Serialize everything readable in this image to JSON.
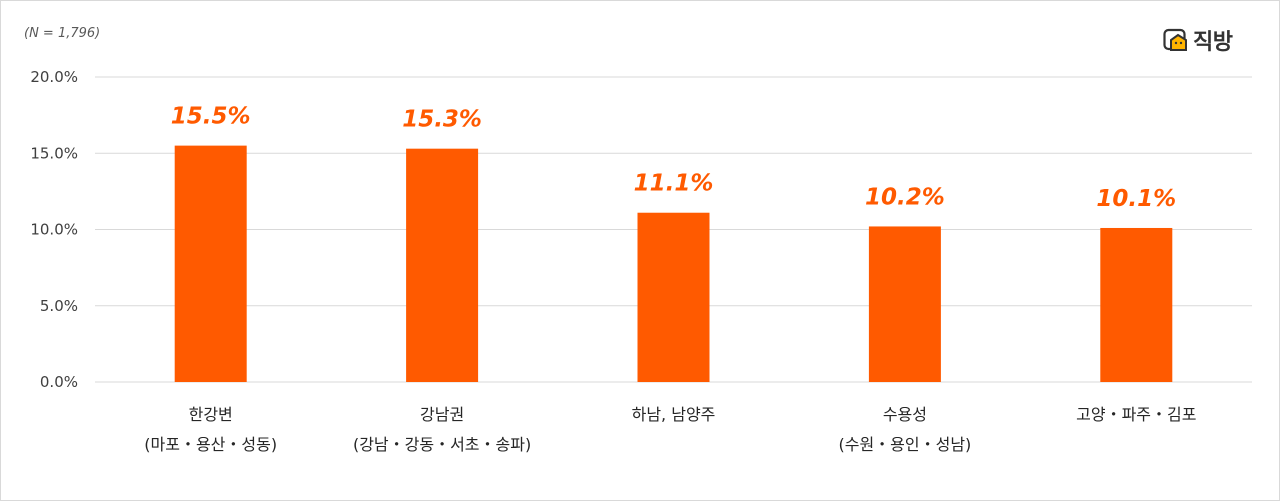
{
  "note": "(N = 1,796)",
  "brand": {
    "name": "직방",
    "logo_icon": "house-face-icon",
    "accent": "#ff5a00"
  },
  "chart_data": {
    "type": "bar",
    "categories": [
      [
        "한강변",
        "(마포・용산・성동)"
      ],
      [
        "강남권",
        "(강남・강동・서초・송파)"
      ],
      [
        "하남, 남양주"
      ],
      [
        "수용성",
        "(수원・용인・성남)"
      ],
      [
        "고양・파주・김포"
      ]
    ],
    "values": [
      15.5,
      15.3,
      11.1,
      10.2,
      10.1
    ],
    "data_labels": [
      "15.5%",
      "15.3%",
      "11.1%",
      "10.2%",
      "10.1%"
    ],
    "yticks": [
      "0.0%",
      "5.0%",
      "10.0%",
      "15.0%",
      "20.0%"
    ],
    "ylim": [
      0,
      20
    ],
    "grid": true,
    "bar_color": "#ff5a00",
    "grid_color": "#d9d9d9"
  }
}
